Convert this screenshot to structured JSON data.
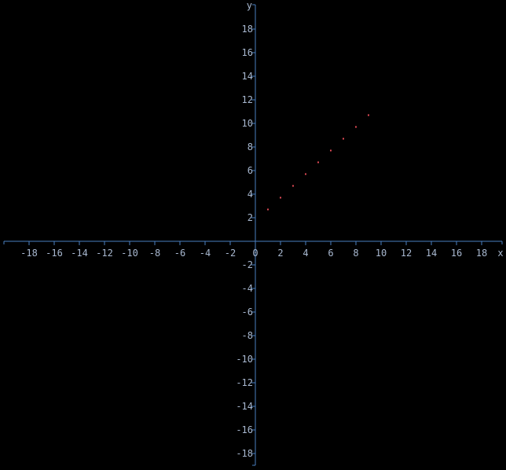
{
  "chart_data": {
    "type": "scatter",
    "xlabel": "x",
    "ylabel": "y",
    "xlim": [
      -20,
      19.6
    ],
    "ylim": [
      -19,
      20
    ],
    "x_ticks": [
      -18,
      -16,
      -14,
      -12,
      -10,
      -8,
      -6,
      -4,
      -2,
      0,
      2,
      4,
      6,
      8,
      10,
      12,
      14,
      16,
      18
    ],
    "y_ticks": [
      -18,
      -16,
      -14,
      -12,
      -10,
      -8,
      -6,
      -4,
      -2,
      2,
      4,
      6,
      8,
      10,
      12,
      14,
      16,
      18
    ],
    "grid": false,
    "colors": {
      "background": "#000000",
      "axis": "#4a7fc0",
      "labels": "#a8b8d0",
      "points": "#e04a55"
    },
    "series": [
      {
        "x": [
          1,
          2,
          3,
          4,
          5,
          6,
          7,
          8,
          9
        ],
        "y": [
          2.7,
          3.7,
          4.7,
          5.7,
          6.7,
          7.7,
          8.7,
          9.7,
          10.7
        ]
      }
    ]
  }
}
